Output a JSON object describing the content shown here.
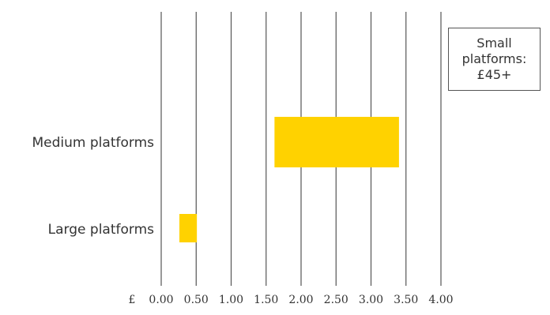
{
  "chart_data": {
    "type": "bar",
    "orientation": "horizontal",
    "categories": [
      "Medium platforms",
      "Large platforms"
    ],
    "ranges": [
      {
        "category": "Medium platforms",
        "low": 1.62,
        "high": 3.4
      },
      {
        "category": "Large platforms",
        "low": 0.26,
        "high": 0.51
      }
    ],
    "currency_symbol": "£",
    "x_ticks": [
      "0.00",
      "0.50",
      "1.00",
      "1.50",
      "2.00",
      "2.50",
      "3.00",
      "3.50",
      "4.00"
    ],
    "xlim": [
      0,
      4
    ],
    "grid": "vertical",
    "annotation": "Small platforms: £45+",
    "colors": {
      "bar": "#FFD200",
      "grid": "#555555",
      "text": "#333333"
    }
  }
}
